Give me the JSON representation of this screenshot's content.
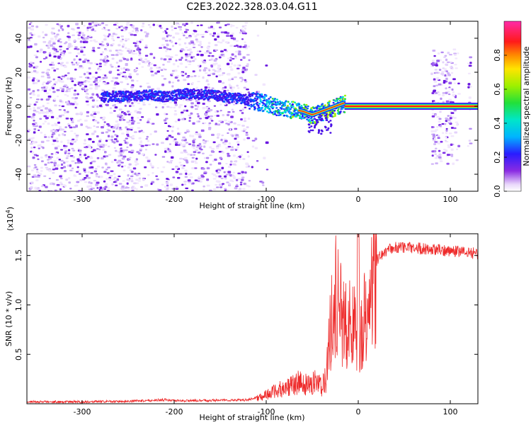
{
  "title": "C2E3.2022.328.03.04.G11",
  "chart_data": [
    {
      "type": "heatmap",
      "xlabel": "Height of straight line (km)",
      "ylabel": "Frequency (Hz)",
      "xlim": [
        -360,
        130
      ],
      "ylim": [
        -50,
        50
      ],
      "xticks": [
        -300,
        -200,
        -100,
        0,
        100
      ],
      "yticks": [
        -40,
        -20,
        0,
        20,
        40
      ],
      "colorbar": {
        "label": "Normalized spectral amplitude",
        "range": [
          0.0,
          1.0
        ],
        "ticks": [
          0.0,
          0.2,
          0.4,
          0.6,
          0.8
        ]
      },
      "grid": false,
      "trace": {
        "name": "",
        "x": [
          -275,
          -225,
          -210,
          -190,
          -160,
          -130,
          -110,
          -100,
          -90,
          -80,
          -70,
          -60,
          -50,
          -40,
          -30,
          -20,
          -15,
          -10,
          0,
          50,
          80,
          100,
          125
        ],
        "y": [
          6,
          7,
          6,
          8,
          7,
          5,
          3,
          2,
          0,
          -1,
          -2,
          -3,
          -5,
          -3,
          -1,
          1,
          2,
          0,
          0,
          0,
          0,
          0,
          0
        ]
      }
    },
    {
      "type": "line",
      "xlabel": "Height of straight line (km)",
      "ylabel": "SNR (10 * v/v)",
      "yscale_label": "(x10^4)",
      "xlim": [
        -360,
        130
      ],
      "ylim": [
        0,
        1.72
      ],
      "xticks": [
        -300,
        -200,
        -100,
        0,
        100
      ],
      "yticks": [
        0.5,
        1.0,
        1.5
      ],
      "grid": false,
      "series": [
        {
          "name": "",
          "color": "#ee2a2a",
          "x": [
            -360,
            -300,
            -250,
            -210,
            -200,
            -150,
            -120,
            -105,
            -95,
            -85,
            -75,
            -65,
            -55,
            -48,
            -40,
            -35,
            -30,
            -25,
            -20,
            -15,
            -10,
            -5,
            0,
            5,
            10,
            15,
            20,
            30,
            40,
            50,
            60,
            70,
            80,
            90,
            100,
            110,
            120,
            130
          ],
          "y": [
            0.02,
            0.02,
            0.025,
            0.04,
            0.03,
            0.035,
            0.04,
            0.08,
            0.13,
            0.17,
            0.2,
            0.25,
            0.22,
            0.28,
            0.2,
            0.3,
            0.9,
            1.3,
            1.1,
            1.0,
            0.95,
            0.9,
            0.85,
            1.0,
            1.2,
            1.35,
            1.45,
            1.55,
            1.58,
            1.58,
            1.58,
            1.57,
            1.56,
            1.55,
            1.55,
            1.54,
            1.53,
            1.52
          ]
        }
      ]
    }
  ]
}
